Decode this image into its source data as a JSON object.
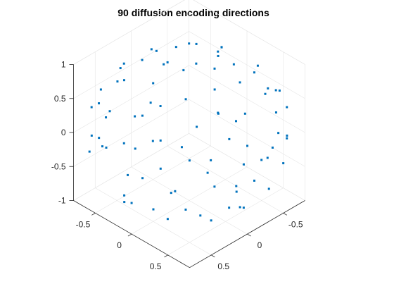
{
  "chart_data": {
    "type": "scatter3d",
    "title": "90 diffusion encoding directions",
    "xlabel": "",
    "ylabel": "",
    "zlabel": "",
    "xlim": [
      -0.8,
      0.8
    ],
    "ylim": [
      -0.8,
      0.8
    ],
    "zlim": [
      -1,
      1
    ],
    "xticks": [
      -0.5,
      0,
      0.5
    ],
    "xtick_labels": [
      "-0.5",
      "0",
      "0.5"
    ],
    "yticks": [
      -0.5,
      0,
      0.5
    ],
    "ytick_labels": [
      "-0.5",
      "0",
      "0.5"
    ],
    "zticks": [
      -1,
      -0.5,
      0,
      0.5,
      1
    ],
    "ztick_labels": [
      "-1",
      "-0.5",
      "0",
      "0.5",
      "1"
    ],
    "grid": true,
    "view": "3d-isometric",
    "marker_color": "#0072BD",
    "series": [
      {
        "points": [
          [
            0.02,
            0.1,
            0.99
          ],
          [
            0.2,
            -0.15,
            0.97
          ],
          [
            -0.2,
            0.1,
            0.97
          ],
          [
            0.05,
            -0.35,
            0.94
          ],
          [
            -0.1,
            0.4,
            0.91
          ],
          [
            0.4,
            0.05,
            0.91
          ],
          [
            -0.38,
            -0.2,
            0.9
          ],
          [
            0.3,
            0.35,
            0.89
          ],
          [
            -0.3,
            -0.4,
            0.87
          ],
          [
            0.45,
            -0.25,
            0.86
          ],
          [
            -0.5,
            0.15,
            0.85
          ],
          [
            0.15,
            0.55,
            0.82
          ],
          [
            -0.15,
            -0.6,
            0.79
          ],
          [
            0.6,
            0.2,
            0.77
          ],
          [
            -0.45,
            0.45,
            0.77
          ],
          [
            0.35,
            -0.55,
            0.76
          ],
          [
            -0.62,
            -0.1,
            0.78
          ],
          [
            0.55,
            0.45,
            0.7
          ],
          [
            0.05,
            0.7,
            0.71
          ],
          [
            -0.25,
            -0.7,
            0.67
          ],
          [
            0.72,
            -0.05,
            0.69
          ],
          [
            -0.7,
            0.25,
            0.67
          ],
          [
            0.6,
            -0.45,
            0.66
          ],
          [
            -0.55,
            -0.55,
            0.63
          ],
          [
            0.35,
            0.75,
            0.56
          ],
          [
            -0.35,
            0.75,
            0.56
          ],
          [
            0.8,
            0.25,
            0.55
          ],
          [
            0.1,
            -0.85,
            0.52
          ],
          [
            -0.8,
            -0.35,
            0.49
          ],
          [
            0.75,
            -0.45,
            0.48
          ],
          [
            -0.85,
            0.05,
            0.52
          ],
          [
            0.65,
            0.65,
            0.39
          ],
          [
            -0.6,
            0.65,
            0.46
          ],
          [
            0.45,
            -0.8,
            0.4
          ],
          [
            -0.4,
            -0.8,
            0.45
          ],
          [
            0.9,
            0.1,
            0.42
          ],
          [
            0.15,
            0.9,
            0.41
          ],
          [
            -0.85,
            -0.5,
            0.17
          ],
          [
            0.88,
            -0.35,
            0.32
          ],
          [
            -0.92,
            0.3,
            0.25
          ],
          [
            0.7,
            0.55,
            -0.45
          ],
          [
            -0.2,
            0.95,
            0.24
          ],
          [
            0.25,
            -0.95,
            0.19
          ],
          [
            -0.65,
            -0.75,
            0.15
          ],
          [
            0.95,
            0.2,
            0.24
          ],
          [
            -0.75,
            0.6,
            0.28
          ],
          [
            0.6,
            -0.75,
            0.28
          ],
          [
            0.45,
            0.85,
            0.27
          ],
          [
            -0.3,
            -0.92,
            0.25
          ],
          [
            0.98,
            -0.1,
            0.17
          ],
          [
            -0.99,
            0.0,
            0.14
          ],
          [
            0.8,
            0.55,
            0.24
          ],
          [
            -0.5,
            0.85,
            0.17
          ],
          [
            0.1,
            -0.99,
            0.1
          ],
          [
            0.85,
            -0.5,
            0.17
          ],
          [
            -0.88,
            -0.35,
            -0.32
          ],
          [
            0.3,
            0.95,
            0.1
          ],
          [
            -0.8,
            0.4,
            -0.45
          ],
          [
            0.95,
            0.3,
            -0.1
          ],
          [
            -0.2,
            -0.85,
            -0.48
          ],
          [
            0.55,
            -0.8,
            -0.24
          ],
          [
            -0.6,
            0.78,
            -0.17
          ],
          [
            0.6,
            0.8,
            0.0
          ],
          [
            -0.95,
            0.2,
            -0.24
          ],
          [
            0.8,
            -0.3,
            -0.52
          ],
          [
            -0.4,
            -0.8,
            -0.45
          ],
          [
            0.1,
            0.9,
            -0.42
          ],
          [
            0.3,
            -0.7,
            -0.65
          ],
          [
            -0.7,
            -0.2,
            -0.68
          ],
          [
            0.55,
            0.25,
            -0.8
          ],
          [
            -0.3,
            0.6,
            -0.74
          ],
          [
            0.05,
            -0.3,
            -0.95
          ],
          [
            -0.2,
            0.05,
            -0.98
          ],
          [
            0.6,
            -0.1,
            -0.79
          ],
          [
            -0.8,
            0.1,
            -0.59
          ],
          [
            0.2,
            0.5,
            -0.84
          ],
          [
            0.4,
            -0.5,
            -0.77
          ],
          [
            -0.5,
            -0.4,
            -0.77
          ],
          [
            0.85,
            0.1,
            -0.52
          ],
          [
            -0.2,
            -0.5,
            -0.84
          ],
          [
            0.35,
            0.85,
            -0.39
          ],
          [
            -0.55,
            0.3,
            -0.78
          ],
          [
            0.1,
            0.15,
            -0.98
          ],
          [
            0.7,
            -0.6,
            -0.39
          ],
          [
            -0.1,
            0.8,
            -0.59
          ],
          [
            0.45,
            -0.1,
            -0.89
          ],
          [
            -0.9,
            -0.15,
            -0.41
          ],
          [
            0.25,
            -0.4,
            -0.88
          ],
          [
            -0.35,
            0.9,
            0.26
          ],
          [
            0.95,
            -0.2,
            0.24
          ]
        ]
      }
    ]
  }
}
